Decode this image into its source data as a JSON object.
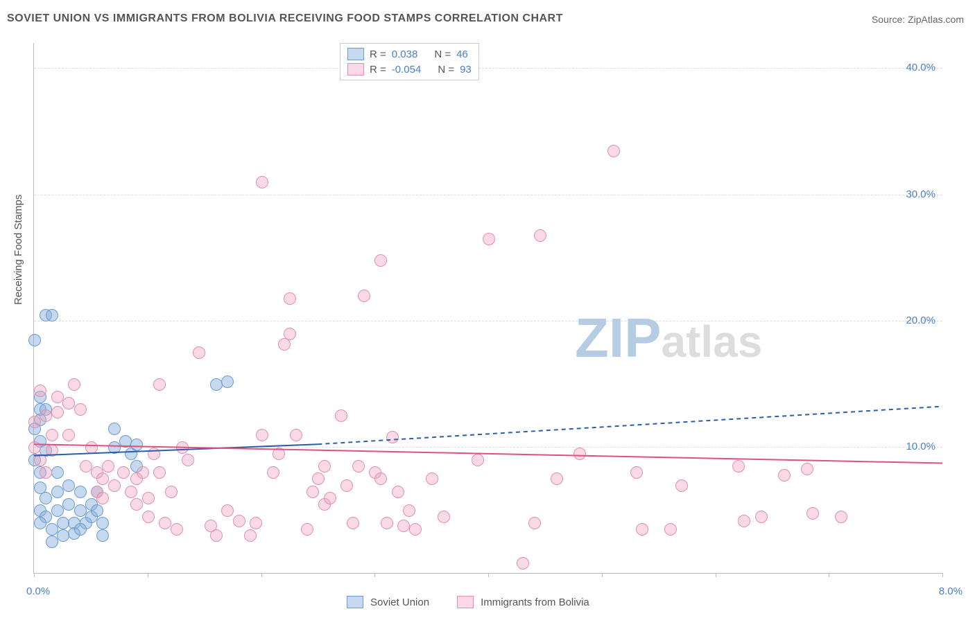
{
  "title": "SOVIET UNION VS IMMIGRANTS FROM BOLIVIA RECEIVING FOOD STAMPS CORRELATION CHART",
  "source": "Source: ZipAtlas.com",
  "watermark": {
    "prefix": "ZIP",
    "suffix": "atlas",
    "prefix_color": "#b5cce3",
    "suffix_color": "#dddddd"
  },
  "chart": {
    "type": "scatter",
    "ylabel": "Receiving Food Stamps",
    "ylabel_fontsize": 15,
    "xlim": [
      0,
      8
    ],
    "ylim": [
      0,
      42
    ],
    "x_ticks_pct": [
      0,
      1,
      2,
      3,
      4,
      5,
      6,
      7,
      8
    ],
    "x_tick_labels": {
      "0": "0.0%",
      "8": "8.0%"
    },
    "y_gridlines": [
      10,
      20,
      30,
      40
    ],
    "y_tick_labels": {
      "10": "10.0%",
      "20": "20.0%",
      "30": "30.0%",
      "40": "40.0%"
    },
    "ylabel_color": "#4a7ec9",
    "xlabel_left_color": "#4a7ec9",
    "xlabel_right_color": "#4a7ec9",
    "grid_color": "#dddddd",
    "background": "#ffffff",
    "series": [
      {
        "name": "Soviet Union",
        "marker_fill": "rgba(130,170,220,0.45)",
        "marker_stroke": "#6a9bd1",
        "line_color": "#2a5fa8",
        "line_width": 2,
        "R": "0.038",
        "N": "46",
        "trend": {
          "solid": {
            "x1": 0,
            "y1": 9.3,
            "x2": 2.5,
            "y2": 10.2
          },
          "dashed": {
            "x1": 2.5,
            "y1": 10.2,
            "x2": 8,
            "y2": 13.2
          }
        },
        "points": [
          [
            0.05,
            12.2
          ],
          [
            0.05,
            13.0
          ],
          [
            0.0,
            18.5
          ],
          [
            0.1,
            20.5
          ],
          [
            0.15,
            20.5
          ],
          [
            0.05,
            14.0
          ],
          [
            0.1,
            13.0
          ],
          [
            0.0,
            11.5
          ],
          [
            0.05,
            10.5
          ],
          [
            0.1,
            9.8
          ],
          [
            0.05,
            8.0
          ],
          [
            0.05,
            6.8
          ],
          [
            0.1,
            6.0
          ],
          [
            0.05,
            5.0
          ],
          [
            0.1,
            4.5
          ],
          [
            0.2,
            8.0
          ],
          [
            0.2,
            6.5
          ],
          [
            0.2,
            5.0
          ],
          [
            0.25,
            4.0
          ],
          [
            0.3,
            7.0
          ],
          [
            0.3,
            5.5
          ],
          [
            0.35,
            4.0
          ],
          [
            0.35,
            3.2
          ],
          [
            0.4,
            6.5
          ],
          [
            0.4,
            5.0
          ],
          [
            0.45,
            4.0
          ],
          [
            0.5,
            5.5
          ],
          [
            0.5,
            4.5
          ],
          [
            0.55,
            6.5
          ],
          [
            0.55,
            5.0
          ],
          [
            0.6,
            4.0
          ],
          [
            0.6,
            3.0
          ],
          [
            0.7,
            11.5
          ],
          [
            0.7,
            10.0
          ],
          [
            0.8,
            10.5
          ],
          [
            0.85,
            9.5
          ],
          [
            0.9,
            8.5
          ],
          [
            0.9,
            10.2
          ],
          [
            0.15,
            2.5
          ],
          [
            0.15,
            3.5
          ],
          [
            0.25,
            3.0
          ],
          [
            0.4,
            3.5
          ],
          [
            1.6,
            15.0
          ],
          [
            1.7,
            15.2
          ],
          [
            0.0,
            9.0
          ],
          [
            0.05,
            4.0
          ]
        ]
      },
      {
        "name": "Immigrants from Bolivia",
        "marker_fill": "rgba(240,160,190,0.40)",
        "marker_stroke": "#e090b0",
        "line_color": "#e05080",
        "line_width": 2,
        "R": "-0.054",
        "N": "93",
        "trend": {
          "solid": {
            "x1": 0,
            "y1": 10.2,
            "x2": 8,
            "y2": 8.7
          }
        },
        "points": [
          [
            0.05,
            14.5
          ],
          [
            0.1,
            12.5
          ],
          [
            0.2,
            14.0
          ],
          [
            0.2,
            12.8
          ],
          [
            0.3,
            13.5
          ],
          [
            0.3,
            11.0
          ],
          [
            0.15,
            11.0
          ],
          [
            0.15,
            9.8
          ],
          [
            0.05,
            9.0
          ],
          [
            0.1,
            8.0
          ],
          [
            0.35,
            15.0
          ],
          [
            0.4,
            13.0
          ],
          [
            0.45,
            8.5
          ],
          [
            0.5,
            10.0
          ],
          [
            0.55,
            8.0
          ],
          [
            0.55,
            6.5
          ],
          [
            0.6,
            7.5
          ],
          [
            0.6,
            6.0
          ],
          [
            0.65,
            8.5
          ],
          [
            0.7,
            7.0
          ],
          [
            0.78,
            8.0
          ],
          [
            0.85,
            6.5
          ],
          [
            0.9,
            7.5
          ],
          [
            0.9,
            5.5
          ],
          [
            0.95,
            8.0
          ],
          [
            1.0,
            6.0
          ],
          [
            1.0,
            4.5
          ],
          [
            1.05,
            9.5
          ],
          [
            1.1,
            8.0
          ],
          [
            1.1,
            15.0
          ],
          [
            1.15,
            4.0
          ],
          [
            1.2,
            6.5
          ],
          [
            1.25,
            3.5
          ],
          [
            1.3,
            10.0
          ],
          [
            1.35,
            9.0
          ],
          [
            1.45,
            17.5
          ],
          [
            1.55,
            3.8
          ],
          [
            1.6,
            3.0
          ],
          [
            1.7,
            5.0
          ],
          [
            1.8,
            4.2
          ],
          [
            1.9,
            3.0
          ],
          [
            1.95,
            4.0
          ],
          [
            2.0,
            11.0
          ],
          [
            2.0,
            31.0
          ],
          [
            2.1,
            8.0
          ],
          [
            2.15,
            9.5
          ],
          [
            2.2,
            18.2
          ],
          [
            2.25,
            21.8
          ],
          [
            2.25,
            19.0
          ],
          [
            2.3,
            11.0
          ],
          [
            2.4,
            3.5
          ],
          [
            2.45,
            6.5
          ],
          [
            2.5,
            7.5
          ],
          [
            2.55,
            5.5
          ],
          [
            2.55,
            8.5
          ],
          [
            2.6,
            6.0
          ],
          [
            2.7,
            12.5
          ],
          [
            2.75,
            7.0
          ],
          [
            2.8,
            4.0
          ],
          [
            2.85,
            8.5
          ],
          [
            2.9,
            22.0
          ],
          [
            3.0,
            8.0
          ],
          [
            3.05,
            7.5
          ],
          [
            3.05,
            24.8
          ],
          [
            3.1,
            4.0
          ],
          [
            3.15,
            10.8
          ],
          [
            3.2,
            6.5
          ],
          [
            3.25,
            3.8
          ],
          [
            3.3,
            5.0
          ],
          [
            3.35,
            3.5
          ],
          [
            3.5,
            7.5
          ],
          [
            3.6,
            4.5
          ],
          [
            3.9,
            9.0
          ],
          [
            4.0,
            26.5
          ],
          [
            4.3,
            0.8
          ],
          [
            4.4,
            4.0
          ],
          [
            4.45,
            26.8
          ],
          [
            4.6,
            7.5
          ],
          [
            4.8,
            9.5
          ],
          [
            5.1,
            33.5
          ],
          [
            5.3,
            8.0
          ],
          [
            5.35,
            3.5
          ],
          [
            5.6,
            3.5
          ],
          [
            5.7,
            7.0
          ],
          [
            6.2,
            8.5
          ],
          [
            6.25,
            4.2
          ],
          [
            6.4,
            4.5
          ],
          [
            6.6,
            7.8
          ],
          [
            6.8,
            8.3
          ],
          [
            6.85,
            4.8
          ],
          [
            7.1,
            4.5
          ],
          [
            0.0,
            10.0
          ],
          [
            0.0,
            12.0
          ]
        ]
      }
    ],
    "legend_top": {
      "R_label": "R =",
      "N_label": "N =",
      "R_color": "#4a7ec9",
      "N_color": "#4a7ec9",
      "text_color": "#555555"
    },
    "legend_bottom": {
      "text_color": "#555555"
    }
  }
}
